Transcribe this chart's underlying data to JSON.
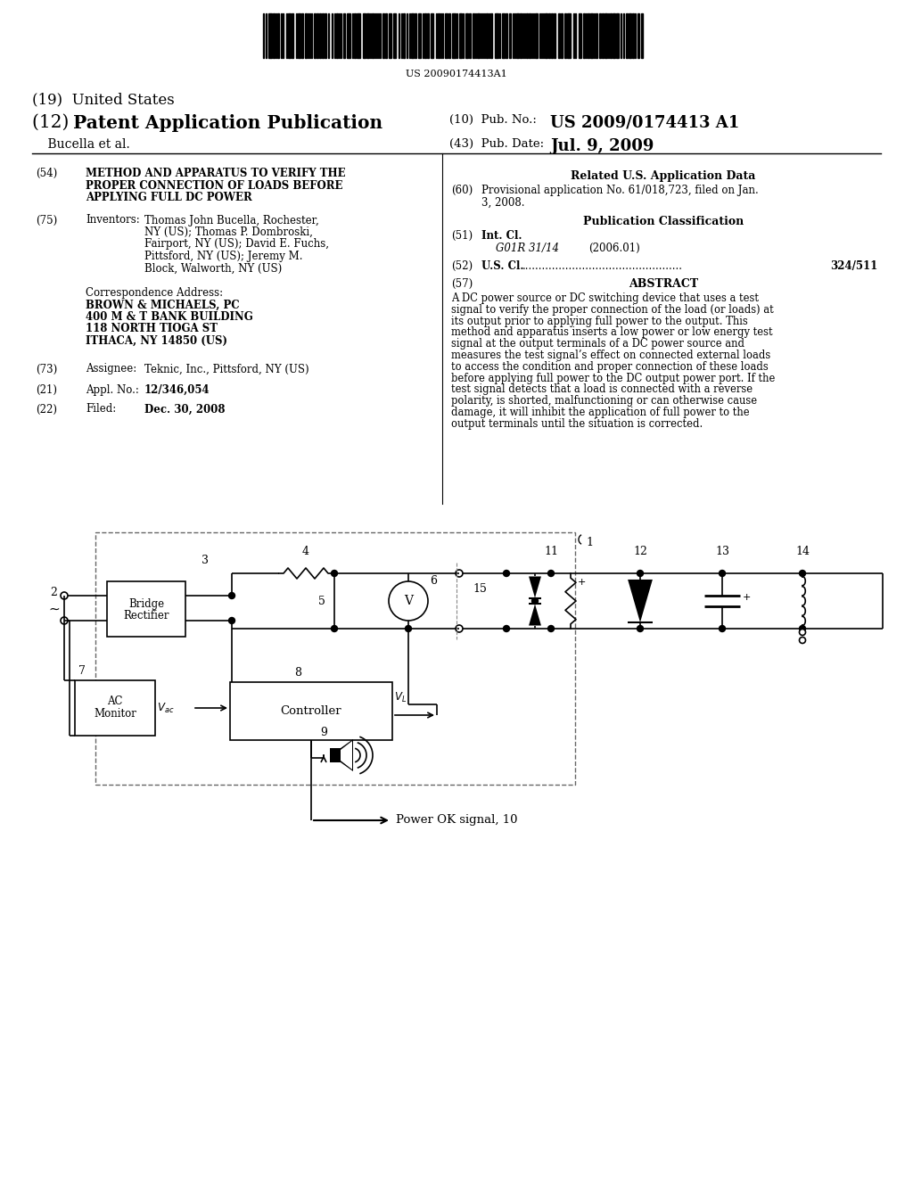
{
  "bg_color": "#ffffff",
  "barcode_text": "US 20090174413A1",
  "title19": "(19)  United States",
  "title12_prefix": "(12) ",
  "title12_bold": "Patent Application Publication",
  "pub_no_label": "(10)  Pub. No.:",
  "pub_no_value": "US 2009/0174413 A1",
  "authors": "    Bucella et al.",
  "pub_date_label": "(43)  Pub. Date:",
  "pub_date_value": "Jul. 9, 2009",
  "field54_label": "(54)",
  "field54_lines": [
    "METHOD AND APPARATUS TO VERIFY THE",
    "PROPER CONNECTION OF LOADS BEFORE",
    "APPLYING FULL DC POWER"
  ],
  "field75_label": "(75)",
  "field75_key": "Inventors:",
  "field75_lines": [
    "Thomas John Bucella, Rochester,",
    "NY (US); Thomas P. Dombroski,",
    "Fairport, NY (US); David E. Fuchs,",
    "Pittsford, NY (US); Jeremy M.",
    "Block, Walworth, NY (US)"
  ],
  "corr_label": "Correspondence Address:",
  "corr_lines": [
    "BROWN & MICHAELS, PC",
    "400 M & T BANK BUILDING",
    "118 NORTH TIOGA ST",
    "ITHACA, NY 14850 (US)"
  ],
  "field73_label": "(73)",
  "field73_key": "Assignee:",
  "field73_value": "Teknic, Inc., Pittsford, NY (US)",
  "field21_label": "(21)",
  "field21_key": "Appl. No.:",
  "field21_value": "12/346,054",
  "field22_label": "(22)",
  "field22_key": "Filed:",
  "field22_value": "Dec. 30, 2008",
  "related_label": "Related U.S. Application Data",
  "field60_label": "(60)",
  "field60_lines": [
    "Provisional application No. 61/018,723, filed on Jan.",
    "3, 2008."
  ],
  "pub_class_label": "Publication Classification",
  "field51_label": "(51)",
  "field51_key": "Int. Cl.",
  "field51_class": "G01R 31/14",
  "field51_year": "(2006.01)",
  "field52_label": "(52)",
  "field52_key": "U.S. Cl.",
  "field52_value": "324/511",
  "field57_label": "(57)",
  "field57_key": "ABSTRACT",
  "abstract_lines": [
    "A DC power source or DC switching device that uses a test",
    "signal to verify the proper connection of the load (or loads) at",
    "its output prior to applying full power to the output. This",
    "method and apparatus inserts a low power or low energy test",
    "signal at the output terminals of a DC power source and",
    "measures the test signal’s effect on connected external loads",
    "to access the condition and proper connection of these loads",
    "before applying full power to the DC output power port. If the",
    "test signal detects that a load is connected with a reverse",
    "polarity, is shorted, malfunctioning or can otherwise cause",
    "damage, it will inhibit the application of full power to the",
    "output terminals until the situation is corrected."
  ]
}
